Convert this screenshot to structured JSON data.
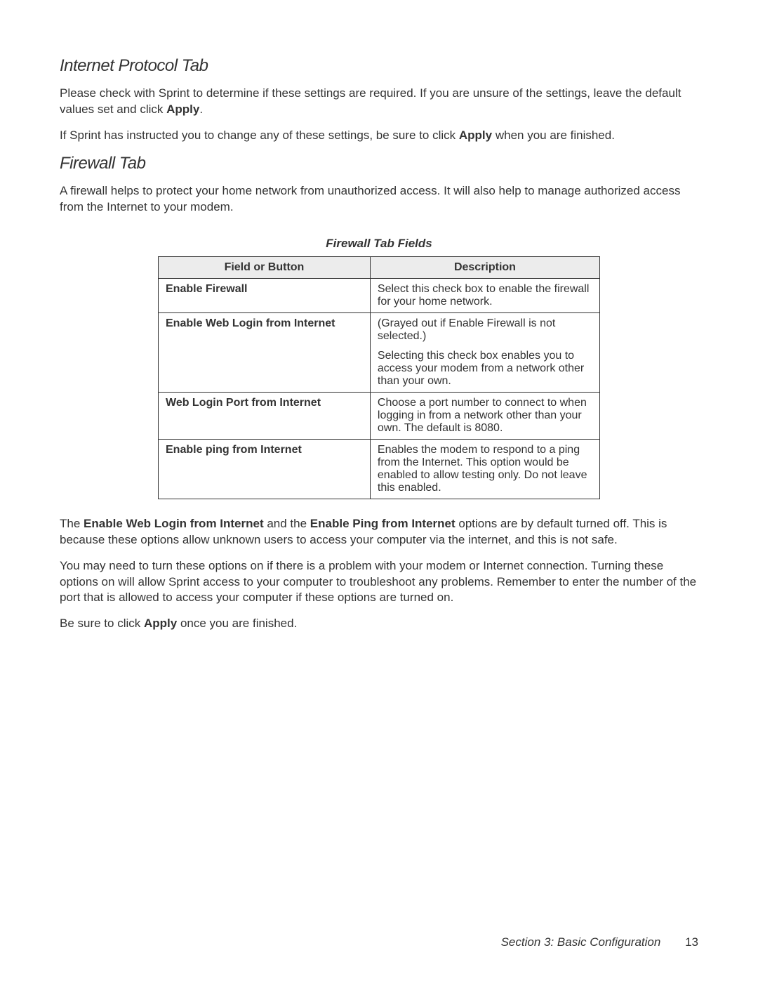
{
  "section1": {
    "heading": "Internet Protocol Tab",
    "para1_a": "Please check with Sprint to determine if these settings are required. If you are unsure of the settings, leave the default values set and click ",
    "para1_bold": "Apply",
    "para1_b": ".",
    "para2_a": "If Sprint has instructed you to change any of these settings, be sure to click ",
    "para2_bold": "Apply",
    "para2_b": " when you are finished."
  },
  "section2": {
    "heading": "Firewall Tab",
    "para1": "A firewall helps to protect your home network from unauthorized access. It will also help to manage authorized access from the Internet to your modem."
  },
  "table": {
    "caption": "Firewall Tab Fields",
    "header": {
      "col1": "Field or Button",
      "col2": "Description"
    },
    "rows": [
      {
        "field": "Enable Firewall",
        "desc": [
          "Select this check box to enable the firewall for your home network."
        ]
      },
      {
        "field": "Enable Web Login from Internet",
        "desc": [
          "(Grayed out if Enable Firewall is not selected.)",
          "Selecting this check box enables you to access your modem from a network other than your own."
        ]
      },
      {
        "field": "Web Login Port from Internet",
        "desc": [
          "Choose a port number to connect to when logging in from a network other than your own. The default is 8080."
        ]
      },
      {
        "field": "Enable ping from Internet",
        "desc": [
          "Enables the modem to respond to a ping from the Internet. This option would be enabled to allow testing only. Do not leave this enabled."
        ]
      }
    ]
  },
  "after_table": {
    "p1_a": "The ",
    "p1_bold1": "Enable Web Login from Internet",
    "p1_b": " and the ",
    "p1_bold2": "Enable Ping from Internet",
    "p1_c": " options are by default turned off. This is because these options allow unknown users to access your computer via the internet, and this is not safe.",
    "p2": "You may need to turn these options on if there is a problem with your modem or Internet connection. Turning these options on will allow Sprint access to your computer to troubleshoot any problems. Remember to enter the number of the port that is allowed to access your computer if these options are turned on.",
    "p3_a": "Be sure to click ",
    "p3_bold": "Apply",
    "p3_b": " once you are finished."
  },
  "footer": {
    "section_label": "Section 3: Basic Configuration",
    "page_number": "13"
  }
}
